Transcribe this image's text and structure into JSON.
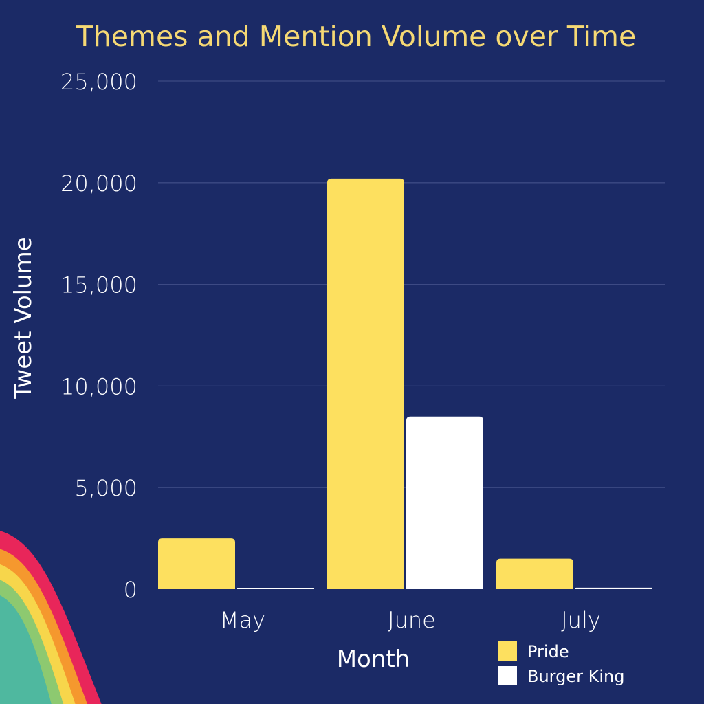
{
  "colors": {
    "background": "#1b2a66",
    "title": "#f6d974",
    "pride": "#fde05f",
    "burger_king": "#ffffff",
    "grid": "#3d4a84",
    "decor_rainbow": [
      "#e8265a",
      "#f5982e",
      "#f7d64b",
      "#8dc970",
      "#4fb89f"
    ]
  },
  "chart_data": {
    "type": "bar",
    "title": "Themes and Mention Volume over Time",
    "xlabel": "Month",
    "ylabel": "Tweet Volume",
    "categories": [
      "May",
      "June",
      "July"
    ],
    "series": [
      {
        "name": "Pride",
        "color": "#fde05f",
        "values": [
          2500,
          20200,
          1500
        ]
      },
      {
        "name": "Burger King",
        "color": "#ffffff",
        "values": [
          20,
          8500,
          70
        ]
      }
    ],
    "ylim": [
      0,
      25000
    ],
    "yticks": [
      0,
      5000,
      10000,
      15000,
      20000,
      25000
    ],
    "ytick_labels": [
      "0",
      "5,000",
      "10,000",
      "15,000",
      "20,000",
      "25,000"
    ],
    "grid": true,
    "legend_position": "bottom-right"
  }
}
